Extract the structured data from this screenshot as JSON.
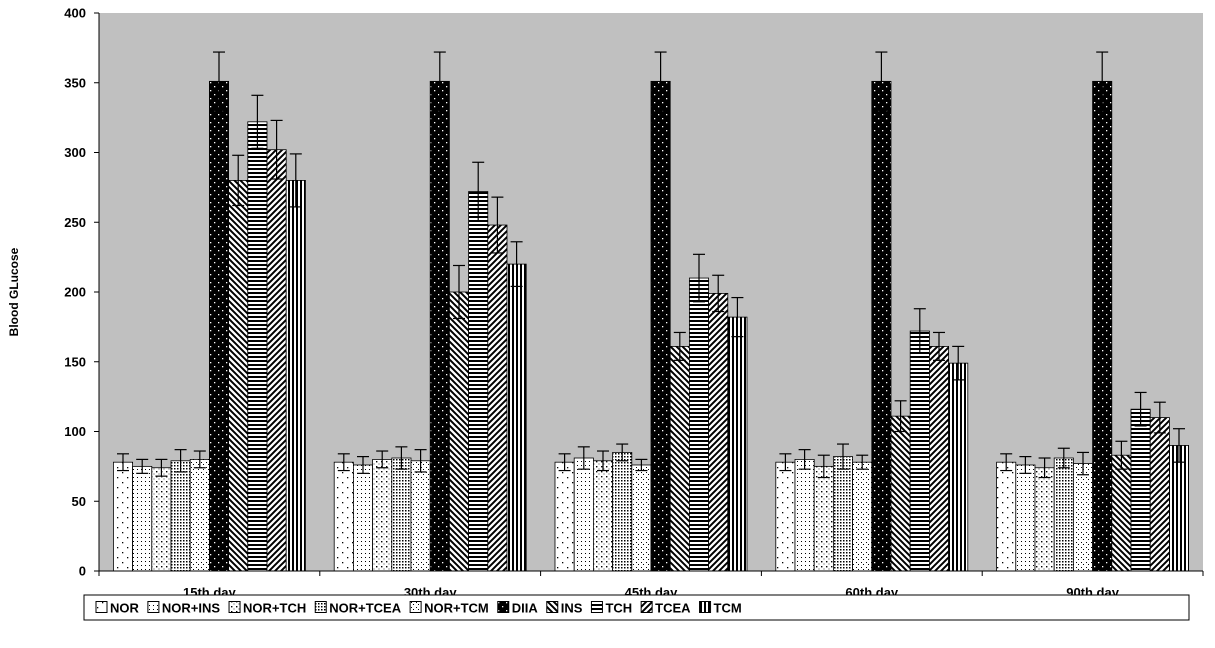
{
  "chart_data": {
    "type": "bar",
    "ylabel": "Blood GLucose",
    "xlabel": "",
    "title": "",
    "ylim": [
      0,
      400
    ],
    "yticks": [
      0,
      50,
      100,
      150,
      200,
      250,
      300,
      350,
      400
    ],
    "categories": [
      "15th day",
      "30th day",
      "45th day",
      "60th day",
      "90th day"
    ],
    "legend_position": "bottom",
    "plot_background": "#c0c0c0",
    "series": [
      {
        "name": "NOR",
        "pattern": "sparse-dots",
        "values": [
          78,
          78,
          78,
          78,
          78
        ],
        "errors": [
          6,
          6,
          6,
          6,
          6
        ]
      },
      {
        "name": "NOR+INS",
        "pattern": "fine-dots",
        "values": [
          75,
          76,
          81,
          80,
          76
        ],
        "errors": [
          5,
          6,
          8,
          7,
          6
        ]
      },
      {
        "name": "NOR+TCH",
        "pattern": "medium-dots",
        "values": [
          74,
          80,
          79,
          75,
          74
        ],
        "errors": [
          6,
          6,
          7,
          8,
          7
        ]
      },
      {
        "name": "NOR+TCEA",
        "pattern": "dense-dots",
        "values": [
          79,
          81,
          85,
          82,
          81
        ],
        "errors": [
          8,
          8,
          6,
          9,
          7
        ]
      },
      {
        "name": "NOR+TCM",
        "pattern": "fine-dots-2",
        "values": [
          80,
          79,
          76,
          78,
          77
        ],
        "errors": [
          6,
          8,
          4,
          5,
          8
        ]
      },
      {
        "name": "DIIA",
        "pattern": "black-dots",
        "values": [
          351,
          351,
          351,
          351,
          351
        ],
        "errors": [
          21,
          21,
          21,
          21,
          21
        ]
      },
      {
        "name": "INS",
        "pattern": "diag-down",
        "values": [
          280,
          200,
          161,
          111,
          83
        ],
        "errors": [
          18,
          19,
          10,
          11,
          10
        ]
      },
      {
        "name": "TCH",
        "pattern": "horiz-lines",
        "values": [
          322,
          272,
          210,
          172,
          116
        ],
        "errors": [
          19,
          21,
          17,
          16,
          12
        ]
      },
      {
        "name": "TCEA",
        "pattern": "diag-up",
        "values": [
          302,
          248,
          199,
          161,
          110
        ],
        "errors": [
          21,
          20,
          13,
          10,
          11
        ]
      },
      {
        "name": "TCM",
        "pattern": "vert-lines",
        "values": [
          280,
          220,
          182,
          149,
          90
        ],
        "errors": [
          19,
          16,
          14,
          12,
          12
        ]
      }
    ]
  }
}
